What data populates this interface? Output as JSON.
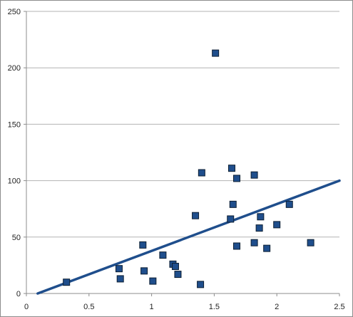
{
  "chart_data": {
    "type": "scatter",
    "title": "",
    "xlabel": "",
    "ylabel": "",
    "xlim": [
      0,
      2.5
    ],
    "ylim": [
      0,
      250
    ],
    "grid": "horizontal",
    "x_ticks": [
      {
        "value": 0,
        "label": "0"
      },
      {
        "value": 0.5,
        "label": "0.5"
      },
      {
        "value": 1,
        "label": "1"
      },
      {
        "value": 1.5,
        "label": "1.5"
      },
      {
        "value": 2,
        "label": "2"
      },
      {
        "value": 2.5,
        "label": "2.5"
      }
    ],
    "y_ticks": [
      {
        "value": 0,
        "label": "0"
      },
      {
        "value": 50,
        "label": "50"
      },
      {
        "value": 100,
        "label": "100"
      },
      {
        "value": 150,
        "label": "150"
      },
      {
        "value": 200,
        "label": "200"
      },
      {
        "value": 250,
        "label": "250"
      }
    ],
    "series": [
      {
        "marker": "square",
        "color": "#1f4e8c",
        "points": [
          {
            "x": 0.32,
            "y": 10
          },
          {
            "x": 0.74,
            "y": 22
          },
          {
            "x": 0.75,
            "y": 13
          },
          {
            "x": 0.93,
            "y": 43
          },
          {
            "x": 0.94,
            "y": 20
          },
          {
            "x": 1.01,
            "y": 11
          },
          {
            "x": 1.09,
            "y": 34
          },
          {
            "x": 1.17,
            "y": 26
          },
          {
            "x": 1.19,
            "y": 24
          },
          {
            "x": 1.21,
            "y": 17
          },
          {
            "x": 1.35,
            "y": 69
          },
          {
            "x": 1.39,
            "y": 8
          },
          {
            "x": 1.4,
            "y": 107
          },
          {
            "x": 1.51,
            "y": 213
          },
          {
            "x": 1.63,
            "y": 66
          },
          {
            "x": 1.64,
            "y": 111
          },
          {
            "x": 1.65,
            "y": 79
          },
          {
            "x": 1.68,
            "y": 42
          },
          {
            "x": 1.68,
            "y": 102
          },
          {
            "x": 1.82,
            "y": 105
          },
          {
            "x": 1.82,
            "y": 45
          },
          {
            "x": 1.87,
            "y": 68
          },
          {
            "x": 1.86,
            "y": 58
          },
          {
            "x": 1.92,
            "y": 40
          },
          {
            "x": 2.0,
            "y": 61
          },
          {
            "x": 2.1,
            "y": 79
          },
          {
            "x": 2.27,
            "y": 45
          }
        ]
      }
    ],
    "trendline": {
      "type": "linear",
      "color": "#1f4e8c",
      "points": [
        {
          "x": 0.09,
          "y": 0
        },
        {
          "x": 2.5,
          "y": 100
        }
      ]
    }
  }
}
